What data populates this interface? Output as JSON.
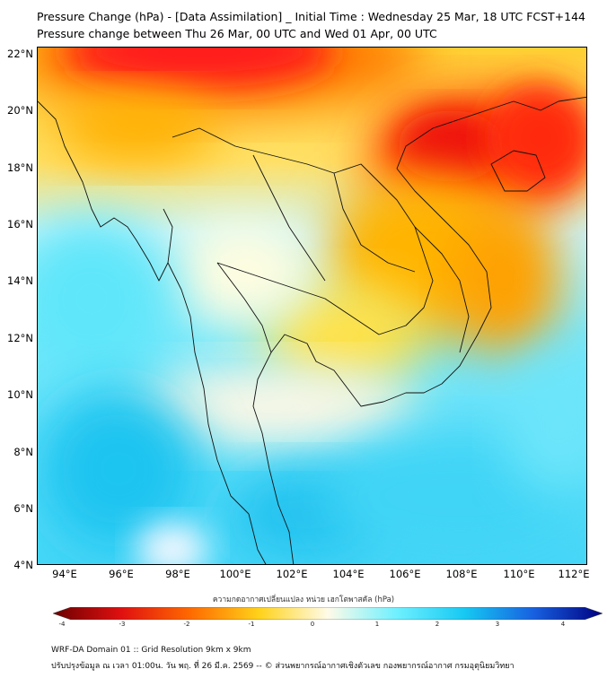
{
  "title_line1": "Pressure Change (hPa) - [Data Assimilation] _ Initial Time : Wednesday 25 Mar, 18 UTC FCST+144",
  "title_line2": "Pressure change between Thu 26 Mar, 00 UTC and Wed 01 Apr, 00 UTC",
  "lat_labels": [
    "22°N",
    "20°N",
    "18°N",
    "16°N",
    "14°N",
    "12°N",
    "10°N",
    "8°N",
    "6°N",
    "4°N"
  ],
  "lon_labels": [
    "94°E",
    "96°E",
    "98°E",
    "100°E",
    "102°E",
    "104°E",
    "106°E",
    "108°E",
    "110°E",
    "112°E"
  ],
  "colorbar": {
    "title": "ความกดอากาศเปลี่ยนแปลง หน่วย เฮกโตพาสคัล (hPa)",
    "ticks": [
      "-4",
      "-3",
      "-2",
      "-1",
      "0",
      "1",
      "2",
      "3",
      "4"
    ],
    "colors": {
      "neg4": "#6b0000",
      "neg3": "#e01010",
      "neg2": "#ff6a00",
      "neg1": "#ffd21a",
      "zero": "#fffbe8",
      "pos1": "#6ff0ff",
      "pos2": "#16c8f2",
      "pos3": "#1760e0",
      "pos4": "#000080"
    }
  },
  "footer_line1": "WRF-DA Domain 01 :: Grid Resolution 9km x 9km",
  "footer_line2": "ปรับปรุงข้อมูล ณ เวลา 01:00น. วัน พฤ. ที่ 26 มี.ค. 2569 -- © ส่วนพยากรณ์อากาศเชิงตัวเลข กองพยากรณ์อากาศ กรมอุตุนิยมวิทยา"
}
